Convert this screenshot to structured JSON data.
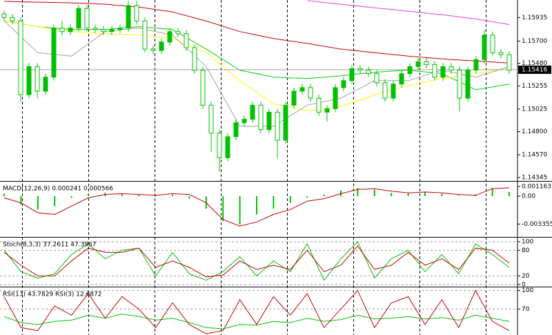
{
  "chart_data": [
    {
      "type": "candlestick",
      "color": "#00c000",
      "open": [
        1.1597,
        1.15935,
        1.159,
        1.15168,
        1.15447,
        1.15203,
        1.15342,
        1.1583,
        1.15795,
        1.1583,
        1.16025,
        1.1583,
        1.15816,
        1.15795,
        1.15816,
        1.1583,
        1.16053,
        1.159,
        1.15621,
        1.15607,
        1.15691,
        1.15795,
        1.15774,
        1.15635,
        1.15412,
        1.15063,
        1.14785,
        1.14541,
        1.1475,
        1.14889,
        1.14924,
        1.15063,
        1.1482,
        1.14994,
        1.14715,
        1.15063,
        1.15203,
        1.15238,
        1.15133,
        1.14994,
        1.15029,
        1.15238,
        1.15307,
        1.15426,
        1.15412,
        1.15377,
        1.15287,
        1.15133,
        1.15273,
        1.15377,
        1.15447,
        1.15496,
        1.15468,
        1.15342,
        1.15447,
        1.15412,
        1.15133,
        1.15412,
        1.15517,
        1.1576,
        1.15586,
        1.15565
      ],
      "high": [
        1.16005,
        1.1597,
        1.15935,
        1.15482,
        1.15482,
        1.15377,
        1.15865,
        1.159,
        1.15865,
        1.1606,
        1.1606,
        1.15865,
        1.15851,
        1.15851,
        1.15865,
        1.161,
        1.161,
        1.15935,
        1.15656,
        1.15726,
        1.1583,
        1.1583,
        1.15809,
        1.1567,
        1.15447,
        1.15098,
        1.1482,
        1.14785,
        1.14924,
        1.14959,
        1.15098,
        1.15098,
        1.15029,
        1.15029,
        1.15098,
        1.15238,
        1.15273,
        1.15273,
        1.15168,
        1.15064,
        1.15273,
        1.15342,
        1.15461,
        1.15461,
        1.15447,
        1.15412,
        1.15322,
        1.15308,
        1.15412,
        1.15482,
        1.15531,
        1.15531,
        1.15503,
        1.15482,
        1.15482,
        1.15447,
        1.15447,
        1.15552,
        1.1581,
        1.15795,
        1.15621,
        1.156
      ],
      "low": [
        1.159,
        1.15865,
        1.151,
        1.15133,
        1.1513,
        1.15168,
        1.15307,
        1.1576,
        1.1576,
        1.15795,
        1.15795,
        1.15781,
        1.1576,
        1.1576,
        1.15781,
        1.15795,
        1.15865,
        1.15586,
        1.15572,
        1.15572,
        1.15656,
        1.15739,
        1.156,
        1.15377,
        1.15028,
        1.146,
        1.144,
        1.14506,
        1.14715,
        1.14854,
        1.14889,
        1.14785,
        1.14785,
        1.1454,
        1.1468,
        1.15028,
        1.15168,
        1.15098,
        1.14959,
        1.149,
        1.14994,
        1.15203,
        1.15272,
        1.15377,
        1.15342,
        1.15252,
        1.15098,
        1.15098,
        1.15238,
        1.15342,
        1.15412,
        1.15433,
        1.15307,
        1.15307,
        1.15377,
        1.15,
        1.15098,
        1.15377,
        1.15482,
        1.15551,
        1.1553,
        1.15377
      ],
      "close": [
        1.15935,
        1.159,
        1.15168,
        1.15447,
        1.15203,
        1.15342,
        1.1583,
        1.15795,
        1.1583,
        1.16025,
        1.1583,
        1.15816,
        1.15795,
        1.15816,
        1.1583,
        1.16053,
        1.159,
        1.15621,
        1.15607,
        1.15691,
        1.15795,
        1.15774,
        1.15635,
        1.15412,
        1.15063,
        1.14785,
        1.14541,
        1.1475,
        1.14889,
        1.14924,
        1.15063,
        1.1482,
        1.14994,
        1.14715,
        1.15063,
        1.15203,
        1.15238,
        1.15133,
        1.14994,
        1.15029,
        1.15238,
        1.15307,
        1.15426,
        1.15412,
        1.15377,
        1.15287,
        1.15133,
        1.15273,
        1.15377,
        1.15447,
        1.15496,
        1.15468,
        1.15342,
        1.15447,
        1.15412,
        1.15133,
        1.15412,
        1.15517,
        1.1576,
        1.15586,
        1.15565,
        1.15412
      ],
      "series": [
        {
          "color": "#c00000",
          "values": [
            1.16095,
            1.16088,
            1.16081,
            1.16067,
            1.16039,
            1.1599,
            1.159,
            1.15795,
            1.15726,
            1.15677,
            1.15621,
            1.15586,
            1.15551,
            1.15524,
            1.15503,
            1.15482
          ]
        },
        {
          "color": "#e040e0",
          "values": [
            null,
            null,
            null,
            null,
            null,
            null,
            null,
            null,
            null,
            1.16102,
            1.16067,
            1.16032,
            1.15997,
            1.15963,
            1.15921,
            1.15865
          ]
        },
        {
          "color": "#00d000",
          "values": [
            1.159,
            1.15844,
            1.15816,
            1.15816,
            1.15844,
            1.15816,
            1.15621,
            1.15412,
            1.15342,
            1.15328,
            1.15356,
            1.15391,
            1.15412,
            1.15377,
            1.15217,
            1.15273
          ]
        },
        {
          "color": "#ffff00",
          "values": [
            1.159,
            1.15844,
            1.15795,
            1.15774,
            1.15761,
            1.15726,
            1.15586,
            1.15307,
            1.15077,
            1.15008,
            1.15049,
            1.15168,
            1.15259,
            1.15328,
            1.15377,
            1.1544
          ]
        },
        {
          "color": "#a0a0a0",
          "values": [
            1.159,
            1.15586,
            1.15551,
            1.15795,
            1.1583,
            1.15761,
            1.15447,
            1.14854,
            1.14854,
            1.15063,
            1.15133,
            1.15307,
            1.15307,
            1.15412,
            1.15342,
            1.15447
          ]
        }
      ],
      "ylim": [
        1.1431,
        1.16109
      ],
      "yticks": [
        1.15935,
        {
          "value": 1.157,
          "label": "1.15700"
        },
        {
          "value": 1.1548,
          "label": "1.15480"
        },
        1.15255,
        1.15025,
        {
          "value": 1.148,
          "label": "1.14800"
        },
        {
          "value": 1.1457,
          "label": "1.14570"
        },
        1.14345
      ],
      "last": 1.15416
    },
    {
      "type": "macd",
      "title": "MACD(12,26,9) 0.000241 0.000566",
      "color": "#00c000",
      "values": [
        0.0003,
        -0.001,
        -0.0016,
        -0.0012,
        -0.0002,
        0.0003,
        0.0004,
        0.0003,
        0.0002,
        0.0001,
        0.0002,
        -0.0003,
        -0.0015,
        -0.003,
        -0.0034,
        -0.0022,
        -0.0015,
        -0.0008,
        -0.0002,
        0.0002,
        0.0007,
        0.001,
        0.0008,
        0.0004,
        0.0004,
        0.0005,
        0.0003,
        0.0001,
        0.0002,
        0.001,
        0.0005
      ],
      "series": [
        {
          "color": "#c00000",
          "values": [
            -0.0002,
            -0.0008,
            -0.002,
            -0.0022,
            -0.0012,
            -0.0002,
            0.0002,
            0.0003,
            0.0002,
            0.0001,
            0.0003,
            0.0002,
            -0.0008,
            -0.0028,
            -0.0036,
            -0.0031,
            -0.0022,
            -0.0016,
            -0.0006,
            -0.0003,
            0.0003,
            0.0008,
            0.0009,
            0.0006,
            0.0004,
            0.0005,
            0.0004,
            0.0002,
            0.0001,
            0.0009,
            0.001
          ]
        }
      ],
      "ylim": [
        -0.0049,
        0.00166
      ],
      "yticks": [
        0.001163,
        {
          "value": 0,
          "label": "0.00"
        },
        -0.003355
      ]
    },
    {
      "type": "line",
      "title": "Stoch(8,3,3) 37.2611 47.3967",
      "grid": true,
      "series": [
        {
          "color": "#00c000",
          "values": [
            80,
            30,
            15,
            25,
            70,
            95,
            60,
            80,
            85,
            20,
            75,
            25,
            10,
            30,
            65,
            20,
            55,
            30,
            95,
            10,
            60,
            100,
            15,
            60,
            80,
            30,
            70,
            25,
            95,
            70,
            40
          ]
        },
        {
          "color": "#c00000",
          "values": [
            75,
            45,
            20,
            20,
            55,
            85,
            75,
            75,
            85,
            40,
            55,
            40,
            18,
            22,
            55,
            35,
            45,
            35,
            80,
            30,
            45,
            90,
            35,
            45,
            75,
            45,
            60,
            35,
            85,
            80,
            50
          ]
        }
      ],
      "ylim": [
        -5,
        108
      ],
      "yticks": [
        100,
        80,
        20,
        0
      ]
    },
    {
      "type": "line",
      "title": "RSI(13) 43.7829 RSI(3) 12.6872",
      "grid": true,
      "series": [
        {
          "color": "#00c000",
          "values": [
            58,
            48,
            45,
            50,
            52,
            60,
            55,
            62,
            58,
            52,
            55,
            48,
            40,
            38,
            45,
            44,
            50,
            48,
            55,
            50,
            53,
            60,
            54,
            55,
            58,
            54,
            56,
            52,
            60,
            55,
            50
          ]
        },
        {
          "color": "#c00000",
          "values": [
            90,
            40,
            35,
            75,
            60,
            95,
            55,
            90,
            70,
            40,
            80,
            45,
            30,
            35,
            85,
            45,
            90,
            60,
            95,
            40,
            70,
            100,
            40,
            80,
            90,
            45,
            85,
            40,
            100,
            50,
            35
          ]
        }
      ],
      "ylim": [
        28,
        104
      ],
      "yticks": [
        100,
        70
      ]
    }
  ]
}
